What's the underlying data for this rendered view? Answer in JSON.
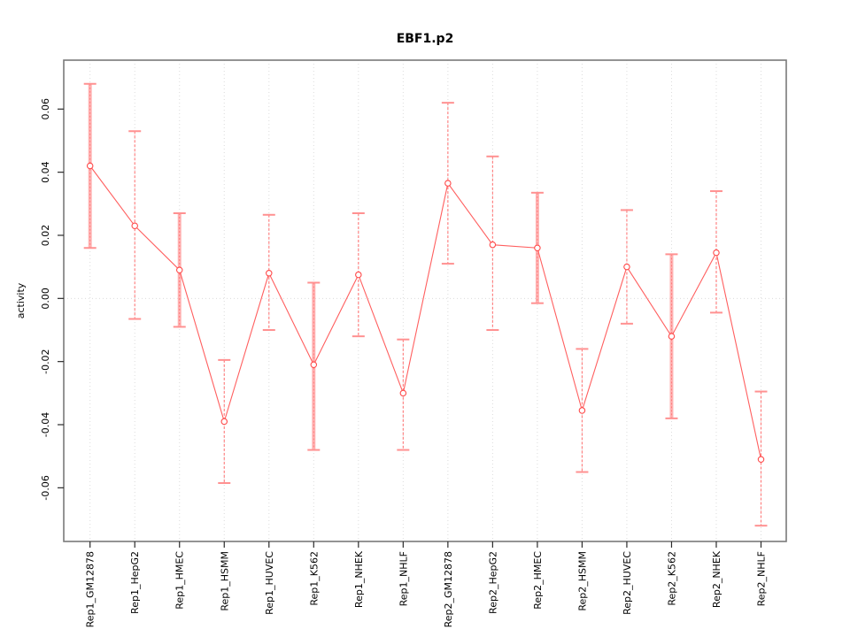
{
  "title": "EBF1.p2",
  "ylabel": "activity",
  "chart_data": {
    "type": "line",
    "title": "EBF1.p2",
    "xlabel": "",
    "ylabel": "activity",
    "ylim": [
      -0.077,
      0.0755
    ],
    "grid": {
      "vertical": "dotted line at every category",
      "horizontal": "dotted line at y=0 only"
    },
    "legend": "none",
    "marker": "open-circle",
    "error_bars": "symmetric, with caps",
    "yticks": [
      {
        "label": "-0.06",
        "value": -0.06
      },
      {
        "label": "-0.04",
        "value": -0.04
      },
      {
        "label": "-0.02",
        "value": -0.02
      },
      {
        "label": "0.00",
        "value": 0.0
      },
      {
        "label": "0.02",
        "value": 0.02
      },
      {
        "label": "0.04",
        "value": 0.04
      },
      {
        "label": "0.06",
        "value": 0.06
      }
    ],
    "categories": [
      "Rep1_GM12878",
      "Rep1_HepG2",
      "Rep1_HMEC",
      "Rep1_HSMM",
      "Rep1_HUVEC",
      "Rep1_K562",
      "Rep1_NHEK",
      "Rep1_NHLF",
      "Rep2_GM12878",
      "Rep2_HepG2",
      "Rep2_HMEC",
      "Rep2_HSMM",
      "Rep2_HUVEC",
      "Rep2_K562",
      "Rep2_NHEK",
      "Rep2_NHLF"
    ],
    "series": [
      {
        "name": "activity",
        "values": [
          0.042,
          0.023,
          0.009,
          -0.039,
          0.008,
          -0.021,
          0.0075,
          -0.03,
          0.0365,
          0.017,
          0.016,
          -0.0355,
          0.01,
          -0.012,
          0.0145,
          -0.051
        ],
        "error_high": [
          0.068,
          0.053,
          0.027,
          -0.0195,
          0.0265,
          0.005,
          0.027,
          -0.013,
          0.062,
          0.045,
          0.0335,
          -0.016,
          0.028,
          0.014,
          0.034,
          -0.0295
        ],
        "error_low": [
          0.016,
          -0.0065,
          -0.009,
          -0.0585,
          -0.01,
          -0.048,
          -0.012,
          -0.048,
          0.011,
          -0.01,
          -0.0015,
          -0.055,
          -0.008,
          -0.038,
          -0.0045,
          -0.072
        ],
        "thick_band": [
          true,
          false,
          true,
          false,
          false,
          true,
          false,
          false,
          false,
          false,
          true,
          false,
          false,
          true,
          false,
          false
        ]
      }
    ],
    "colors": {
      "series": "#ff5f5f",
      "marker": "#ff4a4a",
      "band": "#ffb3b3",
      "bar": "#ff7a7a",
      "cap": "#ff9191",
      "grid": "#dcdcdc",
      "box": "#7a7a7a",
      "tick": "#2b2b2b",
      "text": "#000000"
    }
  }
}
